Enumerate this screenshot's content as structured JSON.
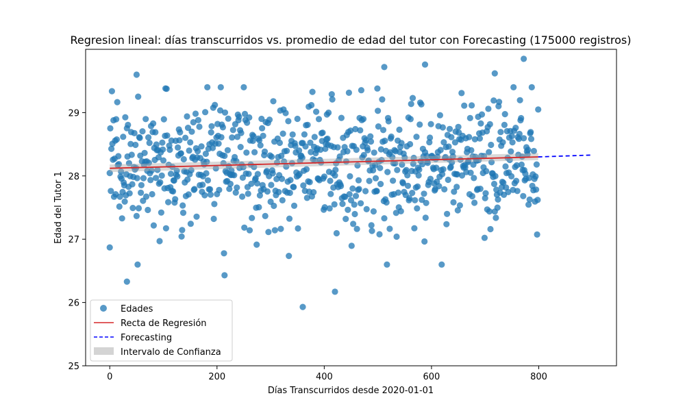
{
  "chart_data": {
    "type": "scatter",
    "title": "Regresion lineal: días transcurridos vs. promedio de edad del tutor con Forecasting (175000 registros)",
    "xlabel": "Días Transcurridos desde 2020-01-01",
    "ylabel": "Edad del Tutor 1",
    "xlim": [
      -45,
      945
    ],
    "ylim": [
      25,
      30
    ],
    "xticks": [
      0,
      200,
      400,
      600,
      800
    ],
    "yticks": [
      25,
      26,
      27,
      28,
      29
    ],
    "grid": false,
    "legend_position": "bottom-left",
    "legend": [
      "Edades",
      "Recta de Regresión",
      "Forecasting",
      "Intervalo de Confianza"
    ],
    "colors": {
      "points": "#1f77b4",
      "regression": "#d62728",
      "forecast": "#0000ff",
      "confidence": "#aaaaaa"
    },
    "scatter_summary": {
      "x_range": [
        0,
        799
      ],
      "mean_age": 28.2,
      "std_age": 0.5,
      "visible_outliers": [
        {
          "x": 0,
          "y": 26.87
        },
        {
          "x": 32,
          "y": 26.33
        },
        {
          "x": 50,
          "y": 29.6
        },
        {
          "x": 214,
          "y": 26.43
        },
        {
          "x": 360,
          "y": 25.93
        },
        {
          "x": 420,
          "y": 26.17
        },
        {
          "x": 512,
          "y": 29.72
        },
        {
          "x": 588,
          "y": 29.76
        },
        {
          "x": 718,
          "y": 29.62
        },
        {
          "x": 772,
          "y": 29.85
        }
      ]
    },
    "regression": {
      "x": [
        0,
        799
      ],
      "y": [
        28.12,
        28.3
      ]
    },
    "forecast": {
      "x": [
        799,
        900
      ],
      "y": [
        28.3,
        28.33
      ]
    },
    "confidence_interval": {
      "x": [
        0,
        799
      ],
      "lower": [
        28.06,
        28.25
      ],
      "upper": [
        28.18,
        28.36
      ]
    }
  }
}
